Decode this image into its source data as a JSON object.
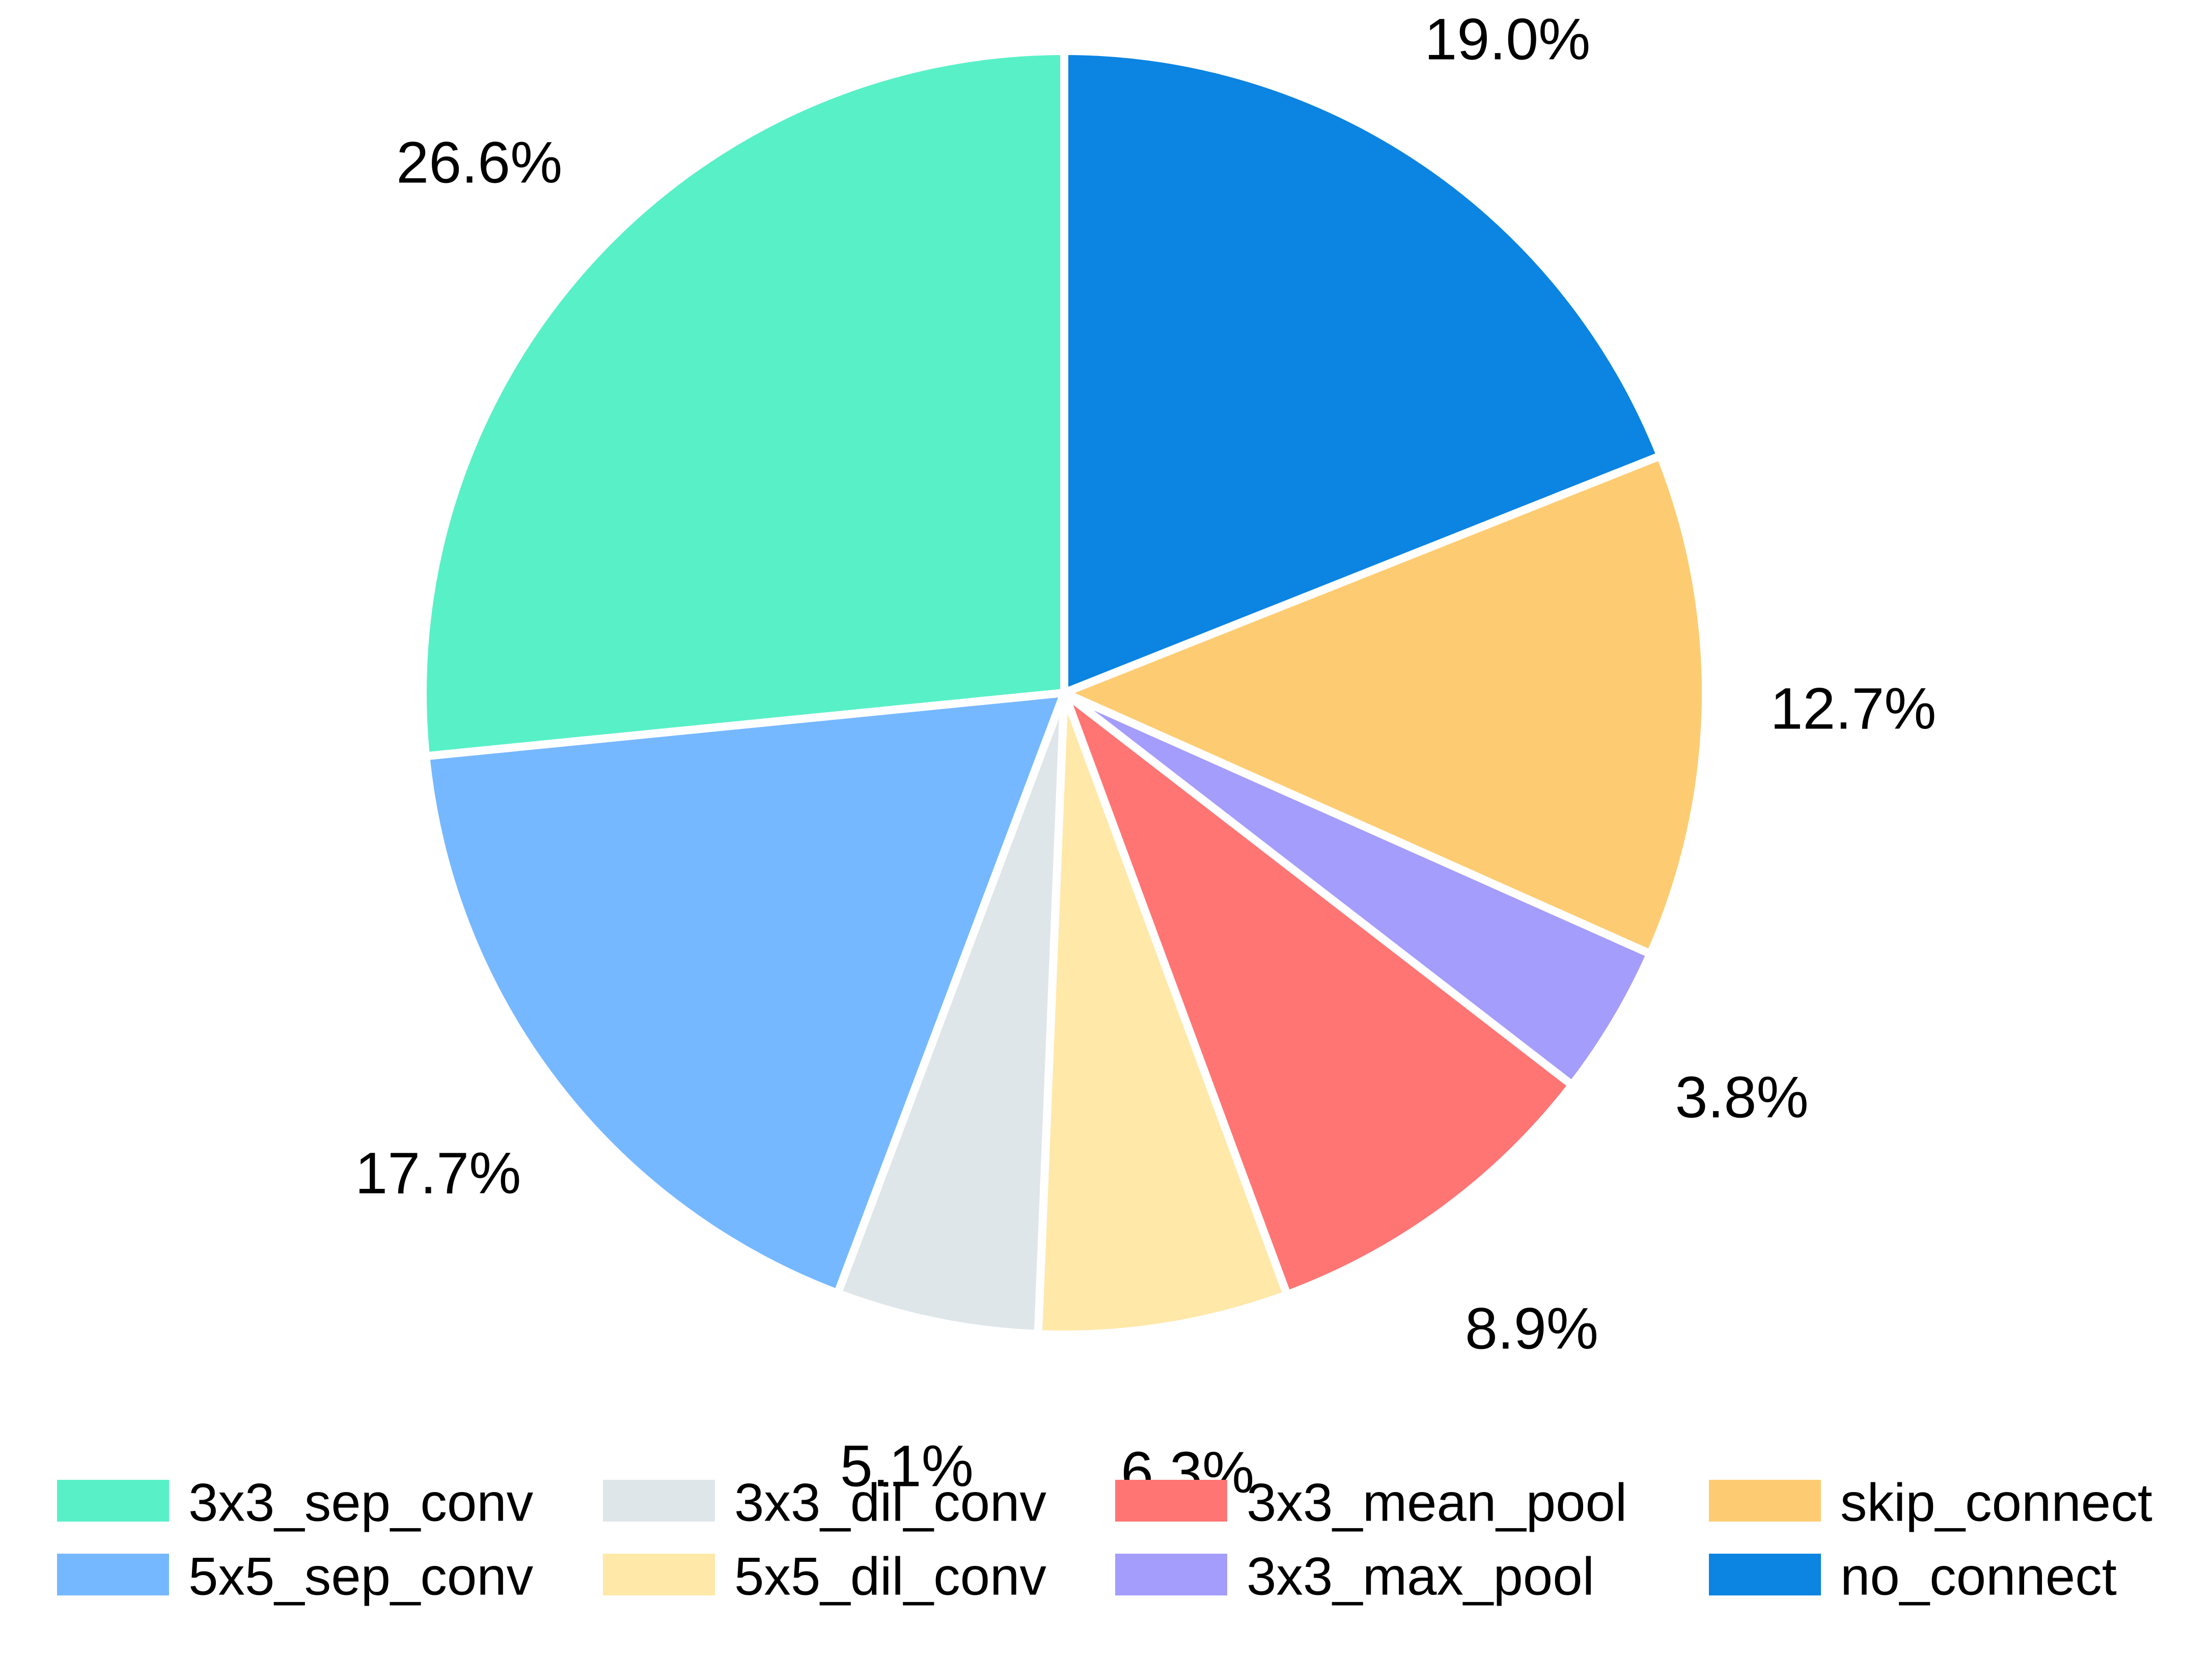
{
  "chart_data": {
    "type": "pie",
    "title": "",
    "start_angle_deg": 90,
    "direction": "clockwise",
    "legend_position": "bottom",
    "slices": [
      {
        "label": "no_connect",
        "value": 19.0,
        "text": "19.0%",
        "color": "#0b84e2"
      },
      {
        "label": "skip_connect",
        "value": 12.7,
        "text": "12.7%",
        "color": "#fdcc72"
      },
      {
        "label": "3x3_max_pool",
        "value": 3.8,
        "text": "3.8%",
        "color": "#a59dfb"
      },
      {
        "label": "3x3_mean_pool",
        "value": 8.9,
        "text": "8.9%",
        "color": "#ff7574"
      },
      {
        "label": "5x5_dil_conv",
        "value": 6.3,
        "text": "6.3%",
        "color": "#ffe8a8"
      },
      {
        "label": "3x3_dil_conv",
        "value": 5.1,
        "text": "5.1%",
        "color": "#dfe6ea"
      },
      {
        "label": "5x5_sep_conv",
        "value": 17.7,
        "text": "17.7%",
        "color": "#76b8ff"
      },
      {
        "label": "3x3_sep_conv",
        "value": 26.6,
        "text": "26.6%",
        "color": "#58f0c7"
      }
    ],
    "legend": [
      {
        "label": "3x3_sep_conv",
        "color": "#58f0c7"
      },
      {
        "label": "5x5_sep_conv",
        "color": "#76b8ff"
      },
      {
        "label": "3x3_dil_conv",
        "color": "#dfe6ea"
      },
      {
        "label": "5x5_dil_conv",
        "color": "#ffe8a8"
      },
      {
        "label": "3x3_mean_pool",
        "color": "#ff7574"
      },
      {
        "label": "3x3_max_pool",
        "color": "#a59dfb"
      },
      {
        "label": "skip_connect",
        "color": "#fdcc72"
      },
      {
        "label": "no_connect",
        "color": "#0b84e2"
      }
    ]
  }
}
